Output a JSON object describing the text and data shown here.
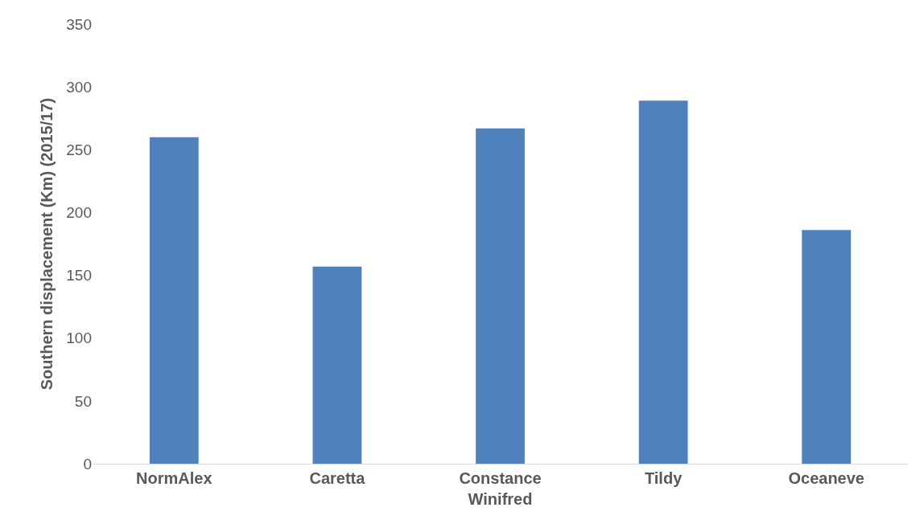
{
  "chart_data": {
    "type": "bar",
    "ylabel": "Southern displacement (Km) (2015/17)",
    "categories": [
      "NormAlex",
      "Caretta",
      "Constance Winifred",
      "Tildy",
      "Oceaneve"
    ],
    "values": [
      260,
      157,
      267,
      289,
      186
    ],
    "color": "#4f81bd",
    "ylim": [
      0,
      350
    ],
    "yticks": [
      0,
      50,
      100,
      150,
      200,
      250,
      300,
      350
    ],
    "grid": false
  }
}
